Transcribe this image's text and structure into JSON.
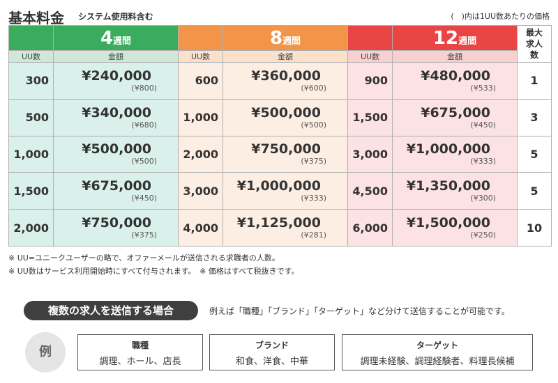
{
  "header": {
    "title": "基本料金",
    "subtitle": "システム使用料含む",
    "note": "(　)内は1UU数あたりの価格"
  },
  "table": {
    "plans": [
      {
        "weeks": "4",
        "unit": "週間",
        "uu_label": "UU数",
        "amount_label": "金額",
        "color": "#3aac5d"
      },
      {
        "weeks": "8",
        "unit": "週間",
        "uu_label": "UU数",
        "amount_label": "金額",
        "color": "#f39548"
      },
      {
        "weeks": "12",
        "unit": "週間",
        "uu_label": "UU数",
        "amount_label": "金額",
        "color": "#ea4545"
      }
    ],
    "max_header": "最大求人数",
    "rows": [
      {
        "c4": {
          "uu": "300",
          "amount": "¥240,000",
          "per": "(¥800)"
        },
        "c8": {
          "uu": "600",
          "amount": "¥360,000",
          "per": "(¥600)"
        },
        "c12": {
          "uu": "900",
          "amount": "¥480,000",
          "per": "(¥533)"
        },
        "max": "1"
      },
      {
        "c4": {
          "uu": "500",
          "amount": "¥340,000",
          "per": "(¥680)"
        },
        "c8": {
          "uu": "1,000",
          "amount": "¥500,000",
          "per": "(¥500)"
        },
        "c12": {
          "uu": "1,500",
          "amount": "¥675,000",
          "per": "(¥450)"
        },
        "max": "3"
      },
      {
        "c4": {
          "uu": "1,000",
          "amount": "¥500,000",
          "per": "(¥500)"
        },
        "c8": {
          "uu": "2,000",
          "amount": "¥750,000",
          "per": "(¥375)"
        },
        "c12": {
          "uu": "3,000",
          "amount": "¥1,000,000",
          "per": "(¥333)"
        },
        "max": "5"
      },
      {
        "c4": {
          "uu": "1,500",
          "amount": "¥675,000",
          "per": "(¥450)"
        },
        "c8": {
          "uu": "3,000",
          "amount": "¥1,000,000",
          "per": "(¥333)"
        },
        "c12": {
          "uu": "4,500",
          "amount": "¥1,350,000",
          "per": "(¥300)"
        },
        "max": "5"
      },
      {
        "c4": {
          "uu": "2,000",
          "amount": "¥750,000",
          "per": "(¥375)"
        },
        "c8": {
          "uu": "4,000",
          "amount": "¥1,125,000",
          "per": "(¥281)"
        },
        "c12": {
          "uu": "6,000",
          "amount": "¥1,500,000",
          "per": "(¥250)"
        },
        "max": "10"
      }
    ]
  },
  "notes": [
    "※ UU=ユニークユーザーの略で、オファーメールが送信される求職者の人数。",
    "※ UU数はサービス利用開始時にすべて付与されます。　※ 価格はすべて税抜きです。"
  ],
  "multi": {
    "pill": "複数の求人を送信する場合",
    "desc": "例えば「職種」「ブランド」「ターゲット」など分けて送信することが可能です。",
    "example_label": "例",
    "examples": [
      {
        "title": "職種",
        "body": "調理、ホール、店長"
      },
      {
        "title": "ブランド",
        "body": "和食、洋食、中華"
      },
      {
        "title": "ターゲット",
        "body": "調理未経験、調理経験者、料理長候補"
      }
    ]
  }
}
